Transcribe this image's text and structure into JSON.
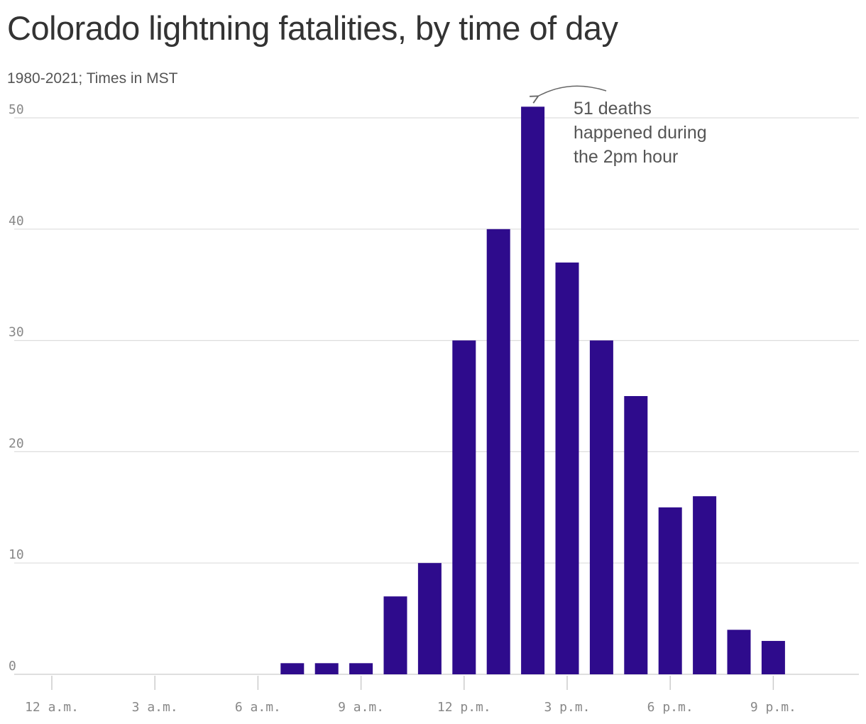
{
  "title": "Colorado lightning fatalities, by time of day",
  "subtitle": "1980-2021; Times in MST",
  "colors": {
    "bar": "#2e0b8c",
    "grid": "#dddddd",
    "axis_text": "#888888",
    "title": "#333333",
    "annotation": "#555555"
  },
  "chart_data": {
    "type": "bar",
    "title": "Colorado lightning fatalities, by time of day",
    "subtitle": "1980-2021; Times in MST",
    "x_hours": [
      7,
      8,
      9,
      10,
      11,
      12,
      13,
      14,
      15,
      16,
      17,
      18,
      19,
      20,
      21
    ],
    "values": [
      1,
      1,
      1,
      7,
      10,
      30,
      40,
      51,
      37,
      30,
      25,
      15,
      16,
      4,
      3
    ],
    "xlim": [
      0,
      23
    ],
    "ylim": [
      0,
      50
    ],
    "y_ticks": [
      "0",
      "10",
      "20",
      "30",
      "40",
      "50"
    ],
    "x_tick_hours": [
      0,
      3,
      6,
      9,
      12,
      15,
      18,
      21
    ],
    "x_tick_labels": [
      "12 a.m.",
      "3 a.m.",
      "6 a.m.",
      "9 a.m.",
      "12 p.m.",
      "3 p.m.",
      "6 p.m.",
      "9 p.m."
    ],
    "grid": true,
    "annotation": {
      "target_hour": 14,
      "target_value": 51,
      "lines": [
        "51 deaths",
        "happened during",
        "the 2pm hour"
      ]
    }
  }
}
